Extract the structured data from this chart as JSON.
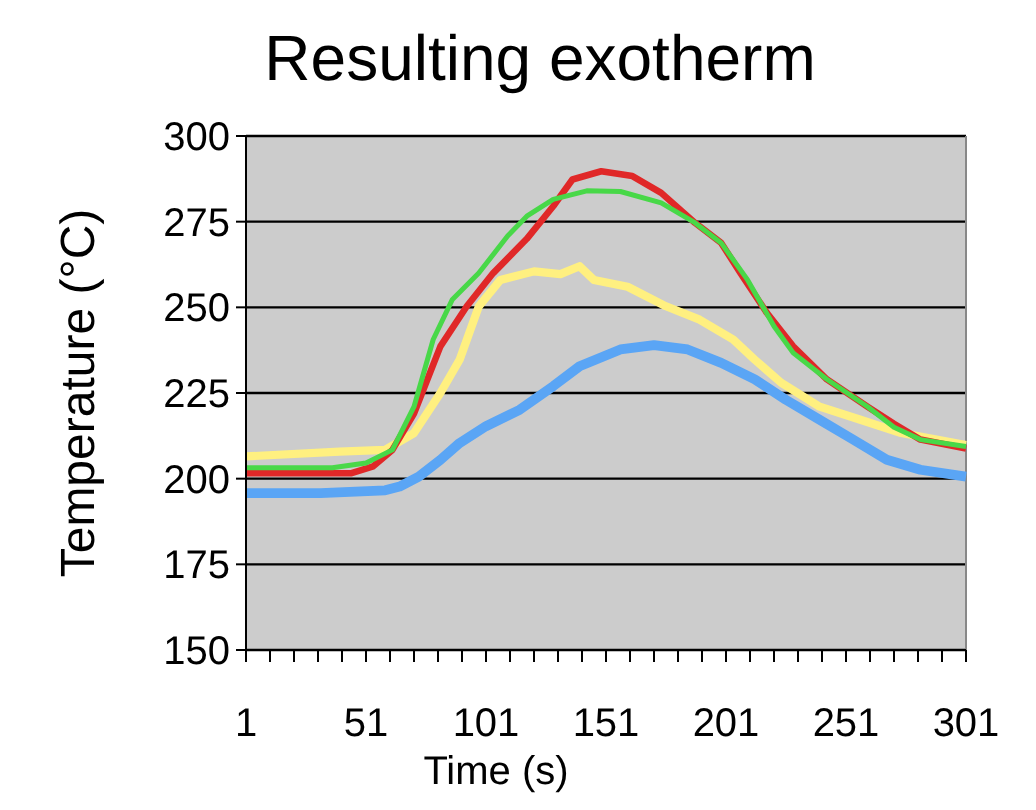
{
  "chart_data": {
    "type": "line",
    "title": "Resulting exotherm",
    "xlabel": "Time (s)",
    "ylabel": "Temperature (°C)",
    "xlim": [
      1,
      301
    ],
    "xticks": [
      1,
      {
        "value": 11,
        "label": null
      },
      {
        "value": 21,
        "label": null
      },
      {
        "value": 31,
        "label": null
      },
      {
        "value": 41,
        "label": null
      },
      51,
      {
        "value": 61,
        "label": null
      },
      {
        "value": 71,
        "label": null
      },
      {
        "value": 81,
        "label": null
      },
      {
        "value": 91,
        "label": null
      },
      101,
      {
        "value": 111,
        "label": null
      },
      {
        "value": 121,
        "label": null
      },
      {
        "value": 131,
        "label": null
      },
      {
        "value": 141,
        "label": null
      },
      151,
      {
        "value": 161,
        "label": null
      },
      {
        "value": 171,
        "label": null
      },
      {
        "value": 181,
        "label": null
      },
      {
        "value": 191,
        "label": null
      },
      201,
      {
        "value": 211,
        "label": null
      },
      {
        "value": 221,
        "label": null
      },
      {
        "value": 231,
        "label": null
      },
      {
        "value": 241,
        "label": null
      },
      251,
      {
        "value": 261,
        "label": null
      },
      {
        "value": 271,
        "label": null
      },
      {
        "value": 281,
        "label": null
      },
      {
        "value": 291,
        "label": null
      },
      301
    ],
    "ylim": [
      150,
      300
    ],
    "yticks": [
      150,
      175,
      200,
      225,
      250,
      275,
      300
    ],
    "grid": "y",
    "marker": "none",
    "line_style": "solid",
    "series": [
      {
        "color": "#5aa5f5",
        "x": [
          1,
          32,
          59,
          65,
          73,
          82,
          90,
          101,
          115,
          129,
          140,
          157,
          171,
          185,
          199,
          213,
          226,
          240,
          254,
          268,
          282,
          301
        ],
        "values": [
          195.8,
          195.8,
          196.6,
          197.7,
          200.6,
          205.5,
          210.4,
          215.3,
          220.1,
          227,
          232.8,
          237.7,
          239,
          237.7,
          233.8,
          229,
          223,
          217.2,
          211.4,
          205.5,
          202.6,
          200.6
        ]
      },
      {
        "color": "#fff080",
        "x": [
          1,
          40,
          59,
          71,
          82,
          90,
          98,
          107,
          121,
          132,
          140,
          146,
          160,
          176,
          190,
          204,
          213,
          224,
          240,
          257,
          274,
          301
        ],
        "values": [
          206.5,
          207.9,
          208.4,
          213.3,
          225,
          234.7,
          250.3,
          258,
          260.5,
          259.7,
          262,
          258,
          256,
          250.3,
          246.4,
          240.6,
          234.7,
          228,
          221,
          217.2,
          213.3,
          209.8
        ]
      },
      {
        "color": "#e02828",
        "x": [
          1,
          45,
          54,
          62,
          71,
          82,
          93,
          104,
          118,
          129,
          137,
          149,
          162,
          174,
          188,
          199,
          207,
          218,
          229,
          243,
          260,
          271,
          282,
          301
        ],
        "values": [
          201.6,
          201.6,
          203.6,
          208.4,
          219,
          238.6,
          250.3,
          260,
          270,
          279.5,
          287.3,
          289.7,
          288.3,
          283.4,
          274.7,
          268.8,
          260,
          248.4,
          238.6,
          229,
          221,
          216,
          211.4,
          208.8
        ]
      },
      {
        "color": "#48d848",
        "x": [
          1,
          37,
          51,
          62,
          71,
          79,
          87,
          98,
          110,
          118,
          129,
          143,
          157,
          174,
          188,
          199,
          210,
          221,
          229,
          243,
          260,
          271,
          282,
          301
        ],
        "values": [
          203.2,
          203.2,
          204.6,
          208.4,
          221,
          240.6,
          252.3,
          260,
          270.8,
          276.6,
          281.5,
          284,
          283.8,
          280.5,
          274.7,
          268.8,
          258,
          244.5,
          236.7,
          229,
          221,
          215,
          211.4,
          209.4
        ]
      }
    ]
  }
}
